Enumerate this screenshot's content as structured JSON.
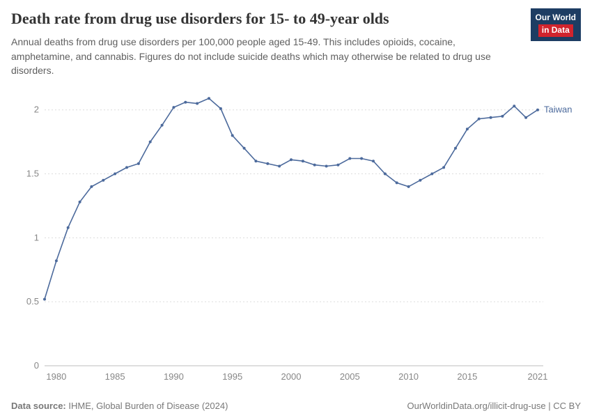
{
  "header": {
    "title": "Death rate from drug use disorders for 15- to 49-year olds",
    "logo": {
      "line1": "Our World",
      "line2": "in Data"
    }
  },
  "subtitle": "Annual deaths from drug use disorders per 100,000 people aged 15-49. This includes opioids, cocaine, amphetamine, and cannabis. Figures do not include suicide deaths which may otherwise be related to drug use disorders.",
  "chart_data": {
    "type": "line",
    "title": "Death rate from drug use disorders for 15- to 49-year olds",
    "xlabel": "",
    "ylabel": "Annual deaths from drug use disorders per 100,000 people aged 15-49",
    "xlim": [
      1979,
      2021
    ],
    "ylim": [
      0,
      2.2
    ],
    "x_ticks": [
      1980,
      1985,
      1990,
      1995,
      2000,
      2005,
      2010,
      2015,
      2021
    ],
    "y_ticks": [
      0,
      0.5,
      1,
      1.5,
      2
    ],
    "grid": "dashed-horizontal",
    "legend_position": "end-of-line",
    "series": [
      {
        "name": "Taiwan",
        "color": "#4c6a9c",
        "x": [
          1979,
          1980,
          1981,
          1982,
          1983,
          1984,
          1985,
          1986,
          1987,
          1988,
          1989,
          1990,
          1991,
          1992,
          1993,
          1994,
          1995,
          1996,
          1997,
          1998,
          1999,
          2000,
          2001,
          2002,
          2003,
          2004,
          2005,
          2006,
          2007,
          2008,
          2009,
          2010,
          2011,
          2012,
          2013,
          2014,
          2015,
          2016,
          2017,
          2018,
          2019,
          2020,
          2021
        ],
        "values": [
          0.52,
          0.82,
          1.08,
          1.28,
          1.4,
          1.45,
          1.5,
          1.55,
          1.58,
          1.75,
          1.88,
          2.02,
          2.06,
          2.05,
          2.09,
          2.01,
          1.8,
          1.7,
          1.6,
          1.58,
          1.56,
          1.61,
          1.6,
          1.57,
          1.56,
          1.57,
          1.62,
          1.62,
          1.6,
          1.5,
          1.43,
          1.4,
          1.45,
          1.5,
          1.55,
          1.7,
          1.85,
          1.93,
          1.94,
          1.95,
          2.03,
          1.94,
          2.0
        ]
      }
    ]
  },
  "axis_colors": {
    "tick_label": "#878787",
    "gridline": "#dcdcdc",
    "baseline": "#bdbdbd"
  },
  "footer": {
    "source_label": "Data source:",
    "source_value": "IHME, Global Burden of Disease (2024)",
    "credit": "OurWorldinData.org/illicit-drug-use | CC BY"
  }
}
